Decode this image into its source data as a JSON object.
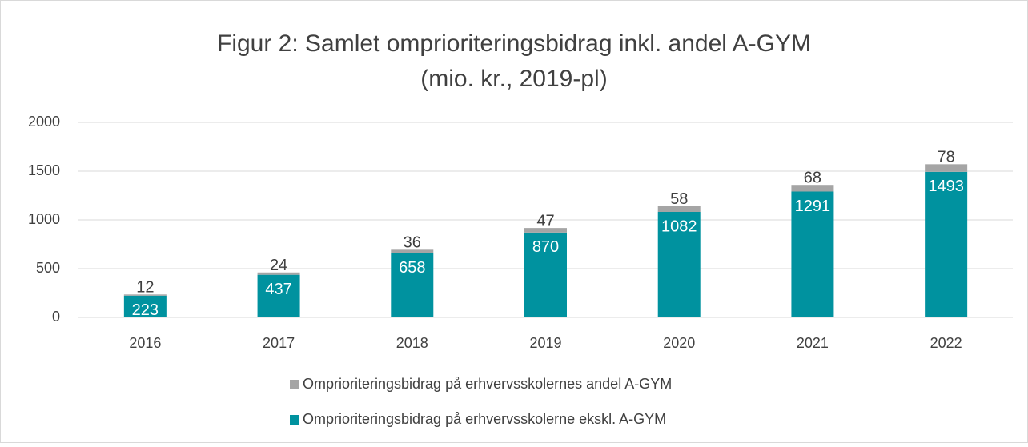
{
  "chart_data": {
    "type": "stacked_bar",
    "title": "Figur 2: Samlet omprioriteringsbidrag inkl. andel A-GYM",
    "subtitle": "(mio. kr., 2019-pl)",
    "categories": [
      "2016",
      "2017",
      "2018",
      "2019",
      "2020",
      "2021",
      "2022"
    ],
    "series": [
      {
        "name": "Omprioriteringsbidrag på erhvervsskolerne ekskl. A-GYM",
        "color": "#00929f",
        "values": [
          223,
          437,
          658,
          870,
          1082,
          1291,
          1493
        ]
      },
      {
        "name": "Omprioriteringsbidrag på erhvervsskolernes andel A-GYM",
        "color": "#a5a5a5",
        "values": [
          12,
          24,
          36,
          47,
          58,
          68,
          78
        ]
      }
    ],
    "ylim": [
      0,
      2000
    ],
    "yticks": [
      0,
      500,
      1000,
      1500,
      2000
    ],
    "grid": true,
    "legend": "bottom"
  }
}
